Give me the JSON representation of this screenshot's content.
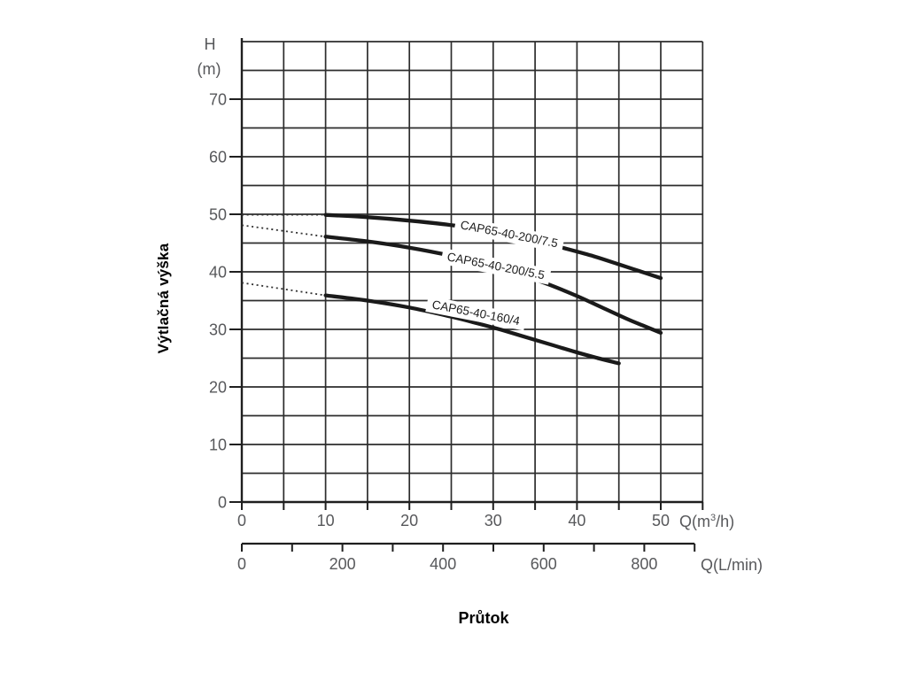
{
  "chart_data": {
    "type": "line",
    "title": "",
    "xlabel": "Průtok",
    "y_axis": {
      "header_line1": "H",
      "header_line2": "(m)",
      "axis_title": "Výtlačná výška",
      "ticks_labeled": [
        0,
        10,
        20,
        30,
        40,
        50,
        60,
        70
      ],
      "minor_step": 5,
      "min": 0,
      "max": 80
    },
    "x_axis": {
      "unit_pre": "Q(m",
      "unit_sup": "3",
      "unit_post": "/h)",
      "ticks_labeled": [
        0,
        10,
        20,
        30,
        40,
        50
      ],
      "minor_step": 5,
      "min": 0,
      "max": 55
    },
    "secondary_x_axis": {
      "unit": "Q(L/min)",
      "ticks_labeled": [
        0,
        200,
        400,
        600,
        800
      ],
      "minor_step": 100,
      "min": 0,
      "max": 900
    },
    "grid": "on",
    "legend_position": "labels-on-curves",
    "series": [
      {
        "name": "CAP65-40-200/7.5",
        "dotted_extension": [
          [
            0,
            49.9
          ],
          [
            10,
            49.9
          ]
        ],
        "points": [
          [
            10,
            49.9
          ],
          [
            15,
            49.5
          ],
          [
            20,
            48.9
          ],
          [
            25,
            48.1
          ],
          [
            30,
            47.0
          ],
          [
            34,
            45.9
          ],
          [
            38,
            44.3
          ],
          [
            42,
            42.7
          ],
          [
            45,
            41.3
          ],
          [
            47.5,
            40.1
          ],
          [
            50,
            38.9
          ]
        ]
      },
      {
        "name": "CAP65-40-200/5.5",
        "dotted_extension": [
          [
            0,
            48.1
          ],
          [
            10,
            46.1
          ]
        ],
        "points": [
          [
            10,
            46.1
          ],
          [
            15,
            45.3
          ],
          [
            20,
            44.2
          ],
          [
            25,
            42.8
          ],
          [
            29,
            41.4
          ],
          [
            33,
            39.7
          ],
          [
            36.8,
            37.7
          ],
          [
            40,
            35.8
          ],
          [
            43,
            33.8
          ],
          [
            46,
            31.8
          ],
          [
            48,
            30.6
          ],
          [
            50,
            29.4
          ]
        ]
      },
      {
        "name": "CAP65-40-160/4",
        "dotted_extension": [
          [
            0,
            38.1
          ],
          [
            10,
            35.9
          ]
        ],
        "points": [
          [
            10,
            35.9
          ],
          [
            15,
            35.0
          ],
          [
            20,
            33.8
          ],
          [
            25,
            32.2
          ],
          [
            28,
            31.1
          ],
          [
            31,
            29.9
          ],
          [
            34,
            28.6
          ],
          [
            37,
            27.3
          ],
          [
            40,
            26.0
          ],
          [
            42.5,
            25.0
          ],
          [
            45,
            24.1
          ]
        ]
      }
    ],
    "colors": {
      "curve": "#1a1a1a",
      "grid": "#2d2d2d",
      "axis": "#1f1f1f",
      "tick_text": "#57585b",
      "title_text": "#000000",
      "curve_label_text": "#1e1e1e",
      "background": "#ffffff"
    }
  }
}
